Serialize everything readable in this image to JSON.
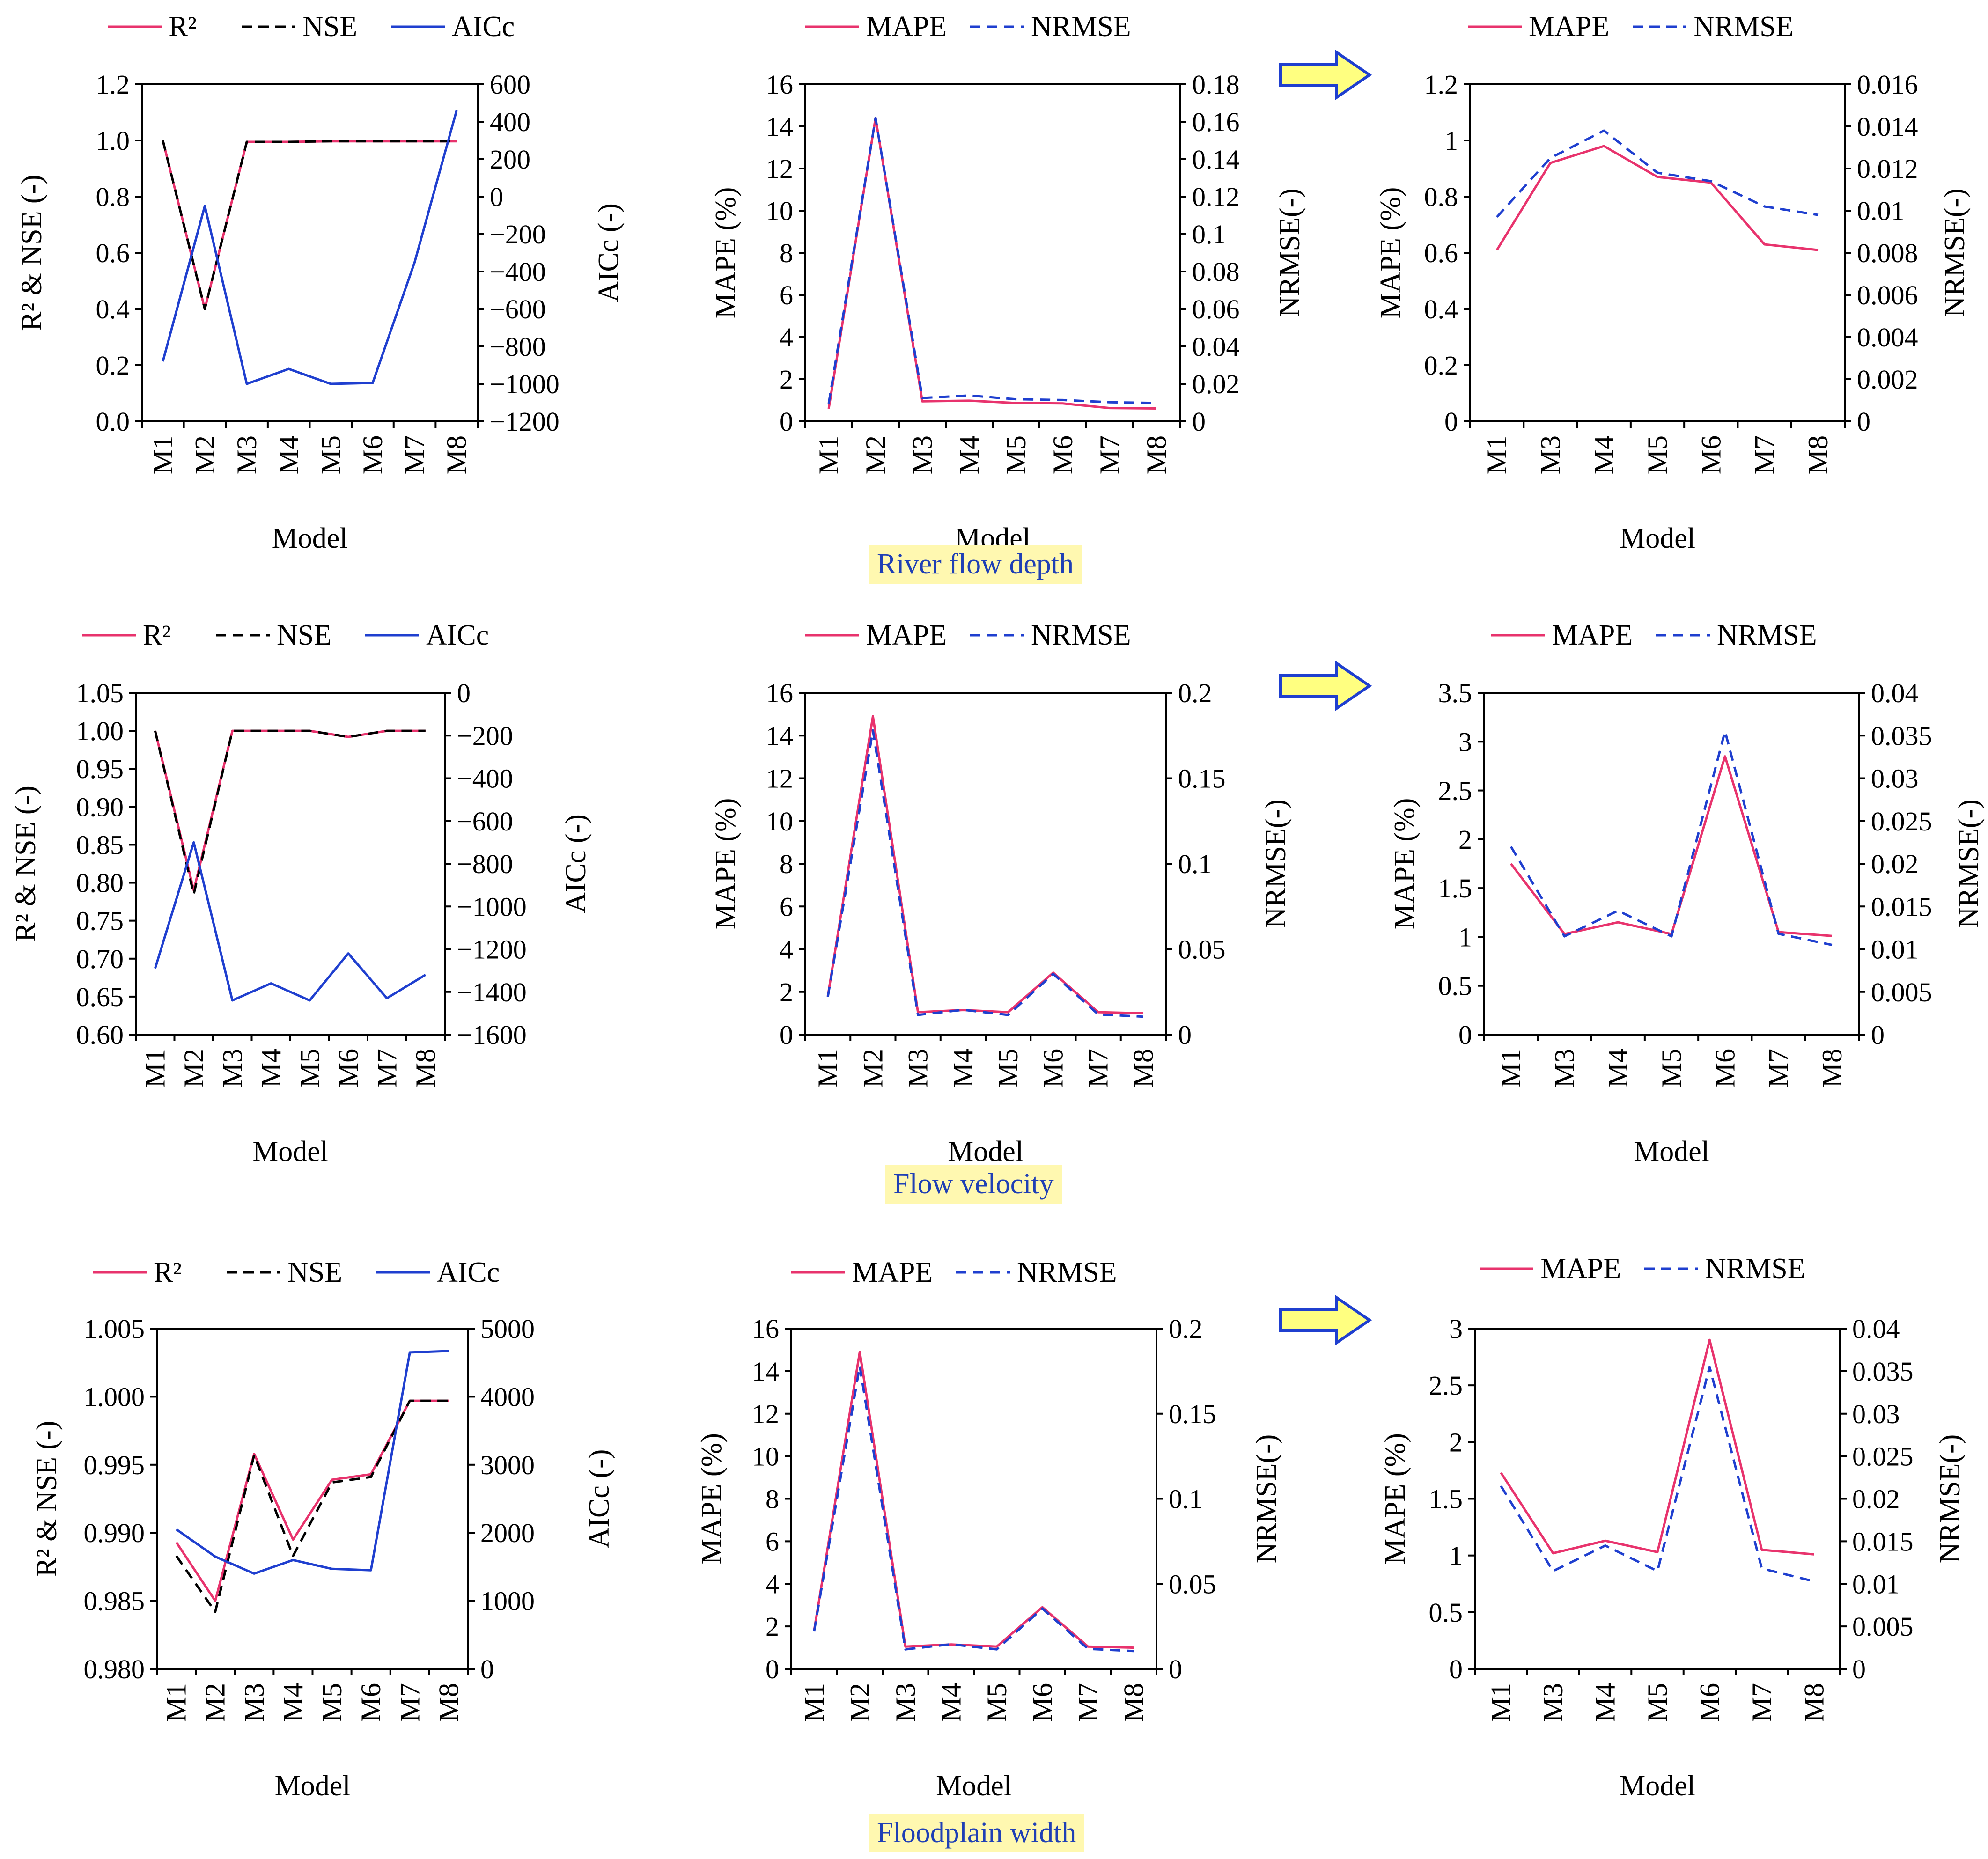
{
  "rows": [
    {
      "caption": "River flow depth",
      "charts": [
        {
          "type": "line",
          "categories": [
            "M1",
            "M2",
            "M3",
            "M4",
            "M5",
            "M6",
            "M7",
            "M8"
          ],
          "legend": [
            "R²",
            "NSE",
            "AICc"
          ],
          "xlabel": "Model",
          "ylabel": "R² & NSE (-)",
          "y2label": "AICc (-)",
          "ylim": [
            0,
            1.2
          ],
          "yticks": [
            0,
            0.2,
            0.4,
            0.6,
            0.8,
            1.0,
            1.2
          ],
          "ytick_labels": [
            "0.0",
            "0.2",
            "0.4",
            "0.6",
            "0.8",
            "1.0",
            "1.2"
          ],
          "y2lim": [
            -1200,
            600
          ],
          "y2ticks": [
            -1200,
            -1000,
            -800,
            -600,
            -400,
            -200,
            0,
            200,
            400,
            600
          ],
          "y2tick_labels": [
            "−1200",
            "−1000",
            "−800",
            "−600",
            "−400",
            "−200",
            "0",
            "200",
            "400",
            "600"
          ],
          "series": [
            {
              "name": "R²",
              "axis": "left",
              "color": "#e8336d",
              "dash": "",
              "values": [
                1.0,
                0.4,
                0.995,
                0.995,
                0.997,
                0.997,
                0.997,
                0.997
              ]
            },
            {
              "name": "NSE",
              "axis": "left",
              "color": "#000000",
              "dash": "22,14",
              "values": [
                1.0,
                0.4,
                0.995,
                0.995,
                0.997,
                0.997,
                0.997,
                0.997
              ]
            },
            {
              "name": "AICc",
              "axis": "right",
              "color": "#1f3fcf",
              "dash": "",
              "values": [
                -880,
                -50,
                -1000,
                -920,
                -1000,
                -995,
                -350,
                460
              ]
            }
          ]
        },
        {
          "type": "line",
          "categories": [
            "M1",
            "M2",
            "M3",
            "M4",
            "M5",
            "M6",
            "M7",
            "M8"
          ],
          "legend": [
            "MAPE",
            "NRMSE"
          ],
          "xlabel": "Model",
          "ylabel": "MAPE (%)",
          "y2label": "NRMSE(-)",
          "ylim": [
            0,
            16
          ],
          "yticks": [
            0,
            2,
            4,
            6,
            8,
            10,
            12,
            14,
            16
          ],
          "ytick_labels": [
            "0",
            "2",
            "4",
            "6",
            "8",
            "10",
            "12",
            "14",
            "16"
          ],
          "y2lim": [
            0,
            0.18
          ],
          "y2ticks": [
            0,
            0.02,
            0.04,
            0.06,
            0.08,
            0.1,
            0.12,
            0.14,
            0.16,
            0.18
          ],
          "y2tick_labels": [
            "0",
            "0.02",
            "0.04",
            "0.06",
            "0.08",
            "0.1",
            "0.12",
            "0.14",
            "0.16",
            "0.18"
          ],
          "series": [
            {
              "name": "MAPE",
              "axis": "left",
              "color": "#e8336d",
              "dash": "",
              "values": [
                0.6,
                14.4,
                0.95,
                0.98,
                0.87,
                0.85,
                0.63,
                0.61
              ]
            },
            {
              "name": "NRMSE",
              "axis": "right",
              "color": "#1f3fcf",
              "dash": "22,14",
              "values": [
                0.0095,
                0.162,
                0.0125,
                0.0138,
                0.0118,
                0.0114,
                0.0102,
                0.0098
              ]
            }
          ]
        },
        {
          "type": "line",
          "categories": [
            "M1",
            "M3",
            "M4",
            "M5",
            "M6",
            "M7",
            "M8"
          ],
          "legend": [
            "MAPE",
            "NRMSE"
          ],
          "xlabel": "Model",
          "ylabel": "MAPE (%)",
          "y2label": "NRMSE(-)",
          "ylim": [
            0,
            1.2
          ],
          "yticks": [
            0,
            0.2,
            0.4,
            0.6,
            0.8,
            1.0,
            1.2
          ],
          "ytick_labels": [
            "0",
            "0.2",
            "0.4",
            "0.6",
            "0.8",
            "1",
            "1.2"
          ],
          "y2lim": [
            0,
            0.016
          ],
          "y2ticks": [
            0,
            0.002,
            0.004,
            0.006,
            0.008,
            0.01,
            0.012,
            0.014,
            0.016
          ],
          "y2tick_labels": [
            "0",
            "0.002",
            "0.004",
            "0.006",
            "0.008",
            "0.01",
            "0.012",
            "0.014",
            "0.016"
          ],
          "series": [
            {
              "name": "MAPE",
              "axis": "left",
              "color": "#e8336d",
              "dash": "",
              "values": [
                0.61,
                0.92,
                0.98,
                0.87,
                0.85,
                0.63,
                0.61
              ]
            },
            {
              "name": "NRMSE",
              "axis": "right",
              "color": "#1f3fcf",
              "dash": "22,14",
              "values": [
                0.0097,
                0.0125,
                0.0138,
                0.0118,
                0.0114,
                0.0102,
                0.0098
              ]
            }
          ]
        }
      ]
    },
    {
      "caption": "Flow velocity",
      "charts": [
        {
          "type": "line",
          "categories": [
            "M1",
            "M2",
            "M3",
            "M4",
            "M5",
            "M6",
            "M7",
            "M8"
          ],
          "legend": [
            "R²",
            "NSE",
            "AICc"
          ],
          "xlabel": "Model",
          "ylabel": "R² & NSE (-)",
          "y2label": "AICc (-)",
          "ylim": [
            0.6,
            1.05
          ],
          "yticks": [
            0.6,
            0.65,
            0.7,
            0.75,
            0.8,
            0.85,
            0.9,
            0.95,
            1.0,
            1.05
          ],
          "ytick_labels": [
            "0.60",
            "0.65",
            "0.70",
            "0.75",
            "0.80",
            "0.85",
            "0.90",
            "0.95",
            "1.00",
            "1.05"
          ],
          "y2lim": [
            -1600,
            0
          ],
          "y2ticks": [
            -1600,
            -1400,
            -1200,
            -1000,
            -800,
            -600,
            -400,
            -200,
            0
          ],
          "y2tick_labels": [
            "−1600",
            "−1400",
            "−1200",
            "−1000",
            "−800",
            "−600",
            "−400",
            "−200",
            "0"
          ],
          "series": [
            {
              "name": "R²",
              "axis": "left",
              "color": "#e8336d",
              "dash": "",
              "values": [
                1.0,
                0.79,
                1.0,
                1.0,
                1.0,
                0.992,
                1.0,
                1.0
              ]
            },
            {
              "name": "NSE",
              "axis": "left",
              "color": "#000000",
              "dash": "22,14",
              "values": [
                1.0,
                0.785,
                1.0,
                1.0,
                1.0,
                0.992,
                1.0,
                1.0
              ]
            },
            {
              "name": "AICc",
              "axis": "right",
              "color": "#1f3fcf",
              "dash": "",
              "values": [
                -1290,
                -700,
                -1440,
                -1360,
                -1440,
                -1220,
                -1430,
                -1320
              ]
            }
          ]
        },
        {
          "type": "line",
          "categories": [
            "M1",
            "M2",
            "M3",
            "M4",
            "M5",
            "M6",
            "M7",
            "M8"
          ],
          "legend": [
            "MAPE",
            "NRMSE"
          ],
          "xlabel": "Model",
          "ylabel": "MAPE (%)",
          "y2label": "NRMSE(-)",
          "ylim": [
            0,
            16
          ],
          "yticks": [
            0,
            2,
            4,
            6,
            8,
            10,
            12,
            14,
            16
          ],
          "ytick_labels": [
            "0",
            "2",
            "4",
            "6",
            "8",
            "10",
            "12",
            "14",
            "16"
          ],
          "y2lim": [
            0,
            0.2
          ],
          "y2ticks": [
            0,
            0.05,
            0.1,
            0.15,
            0.2
          ],
          "y2tick_labels": [
            "0",
            "0.05",
            "0.1",
            "0.15",
            "0.2"
          ],
          "series": [
            {
              "name": "MAPE",
              "axis": "left",
              "color": "#e8336d",
              "dash": "",
              "values": [
                1.8,
                14.9,
                1.05,
                1.15,
                1.05,
                2.9,
                1.05,
                1.0
              ]
            },
            {
              "name": "NRMSE",
              "axis": "right",
              "color": "#1f3fcf",
              "dash": "22,14",
              "values": [
                0.022,
                0.178,
                0.0115,
                0.0145,
                0.0115,
                0.0355,
                0.0118,
                0.0105
              ]
            }
          ]
        },
        {
          "type": "line",
          "categories": [
            "M1",
            "M3",
            "M4",
            "M5",
            "M6",
            "M7",
            "M8"
          ],
          "legend": [
            "MAPE",
            "NRMSE"
          ],
          "xlabel": "Model",
          "ylabel": "MAPE (%)",
          "y2label": "NRMSE(-)",
          "ylim": [
            0,
            3.5
          ],
          "yticks": [
            0,
            0.5,
            1,
            1.5,
            2,
            2.5,
            3,
            3.5
          ],
          "ytick_labels": [
            "0",
            "0.5",
            "1",
            "1.5",
            "2",
            "2.5",
            "3",
            "3.5"
          ],
          "y2lim": [
            0,
            0.04
          ],
          "y2ticks": [
            0,
            0.005,
            0.01,
            0.015,
            0.02,
            0.025,
            0.03,
            0.035,
            0.04
          ],
          "y2tick_labels": [
            "0",
            "0.005",
            "0.01",
            "0.015",
            "0.02",
            "0.025",
            "0.03",
            "0.035",
            "0.04"
          ],
          "series": [
            {
              "name": "MAPE",
              "axis": "left",
              "color": "#e8336d",
              "dash": "",
              "values": [
                1.75,
                1.03,
                1.15,
                1.03,
                2.85,
                1.05,
                1.01
              ]
            },
            {
              "name": "NRMSE",
              "axis": "right",
              "color": "#1f3fcf",
              "dash": "22,14",
              "values": [
                0.022,
                0.0115,
                0.0145,
                0.0115,
                0.0355,
                0.0118,
                0.0105
              ]
            }
          ]
        }
      ]
    },
    {
      "caption": "Floodplain width",
      "charts": [
        {
          "type": "line",
          "categories": [
            "M1",
            "M2",
            "M3",
            "M4",
            "M5",
            "M6",
            "M7",
            "M8"
          ],
          "legend": [
            "R²",
            "NSE",
            "AICc"
          ],
          "xlabel": "Model",
          "ylabel": "R² & NSE (-)",
          "y2label": "AICc (-)",
          "ylim": [
            0.98,
            1.005
          ],
          "yticks": [
            0.98,
            0.985,
            0.99,
            0.995,
            1.0,
            1.005
          ],
          "ytick_labels": [
            "0.980",
            "0.985",
            "0.990",
            "0.995",
            "1.000",
            "1.005"
          ],
          "y2lim": [
            0,
            5000
          ],
          "y2ticks": [
            0,
            1000,
            2000,
            3000,
            4000,
            5000
          ],
          "y2tick_labels": [
            "0",
            "1000",
            "2000",
            "3000",
            "4000",
            "5000"
          ],
          "series": [
            {
              "name": "R²",
              "axis": "left",
              "color": "#e8336d",
              "dash": "",
              "values": [
                0.9893,
                0.985,
                0.9958,
                0.9895,
                0.9939,
                0.9943,
                0.9997,
                0.9997
              ]
            },
            {
              "name": "NSE",
              "axis": "left",
              "color": "#000000",
              "dash": "22,14",
              "values": [
                0.9883,
                0.9842,
                0.9957,
                0.9883,
                0.9937,
                0.9941,
                0.9997,
                0.9997
              ]
            },
            {
              "name": "AICc",
              "axis": "right",
              "color": "#1f3fcf",
              "dash": "",
              "values": [
                2050,
                1650,
                1400,
                1600,
                1470,
                1450,
                4650,
                4670
              ]
            }
          ]
        },
        {
          "type": "line",
          "categories": [
            "M1",
            "M2",
            "M3",
            "M4",
            "M5",
            "M6",
            "M7",
            "M8"
          ],
          "legend": [
            "MAPE",
            "NRMSE"
          ],
          "xlabel": "Model",
          "ylabel": "MAPE (%)",
          "y2label": "NRMSE(-)",
          "ylim": [
            0,
            16
          ],
          "yticks": [
            0,
            2,
            4,
            6,
            8,
            10,
            12,
            14,
            16
          ],
          "ytick_labels": [
            "0",
            "2",
            "4",
            "6",
            "8",
            "10",
            "12",
            "14",
            "16"
          ],
          "y2lim": [
            0,
            0.2
          ],
          "y2ticks": [
            0,
            0.05,
            0.1,
            0.15,
            0.2
          ],
          "y2tick_labels": [
            "0",
            "0.05",
            "0.1",
            "0.15",
            "0.2"
          ],
          "series": [
            {
              "name": "MAPE",
              "axis": "left",
              "color": "#e8336d",
              "dash": "",
              "values": [
                1.8,
                14.9,
                1.05,
                1.15,
                1.05,
                2.9,
                1.05,
                1.0
              ]
            },
            {
              "name": "NRMSE",
              "axis": "right",
              "color": "#1f3fcf",
              "dash": "22,14",
              "values": [
                0.022,
                0.178,
                0.0115,
                0.0145,
                0.0115,
                0.0355,
                0.0118,
                0.0105
              ]
            }
          ]
        },
        {
          "type": "line",
          "categories": [
            "M1",
            "M3",
            "M4",
            "M5",
            "M6",
            "M7",
            "M8"
          ],
          "legend": [
            "MAPE",
            "NRMSE"
          ],
          "xlabel": "Model",
          "ylabel": "MAPE (%)",
          "y2label": "NRMSE(-)",
          "ylim": [
            0,
            3
          ],
          "yticks": [
            0,
            0.5,
            1,
            1.5,
            2,
            2.5,
            3
          ],
          "ytick_labels": [
            "0",
            "0.5",
            "1",
            "1.5",
            "2",
            "2.5",
            "3"
          ],
          "y2lim": [
            0,
            0.04
          ],
          "y2ticks": [
            0,
            0.005,
            0.01,
            0.015,
            0.02,
            0.025,
            0.03,
            0.035,
            0.04
          ],
          "y2tick_labels": [
            "0",
            "0.005",
            "0.01",
            "0.015",
            "0.02",
            "0.025",
            "0.03",
            "0.035",
            "0.04"
          ],
          "series": [
            {
              "name": "MAPE",
              "axis": "left",
              "color": "#e8336d",
              "dash": "",
              "values": [
                1.73,
                1.02,
                1.13,
                1.03,
                2.9,
                1.05,
                1.01
              ]
            },
            {
              "name": "NRMSE",
              "axis": "right",
              "color": "#1f3fcf",
              "dash": "22,14",
              "values": [
                0.0215,
                0.0115,
                0.0145,
                0.0115,
                0.0355,
                0.0118,
                0.0103
              ]
            }
          ]
        }
      ]
    }
  ],
  "arrow_color": "#ffff80",
  "arrow_border": "#1f3fcf"
}
